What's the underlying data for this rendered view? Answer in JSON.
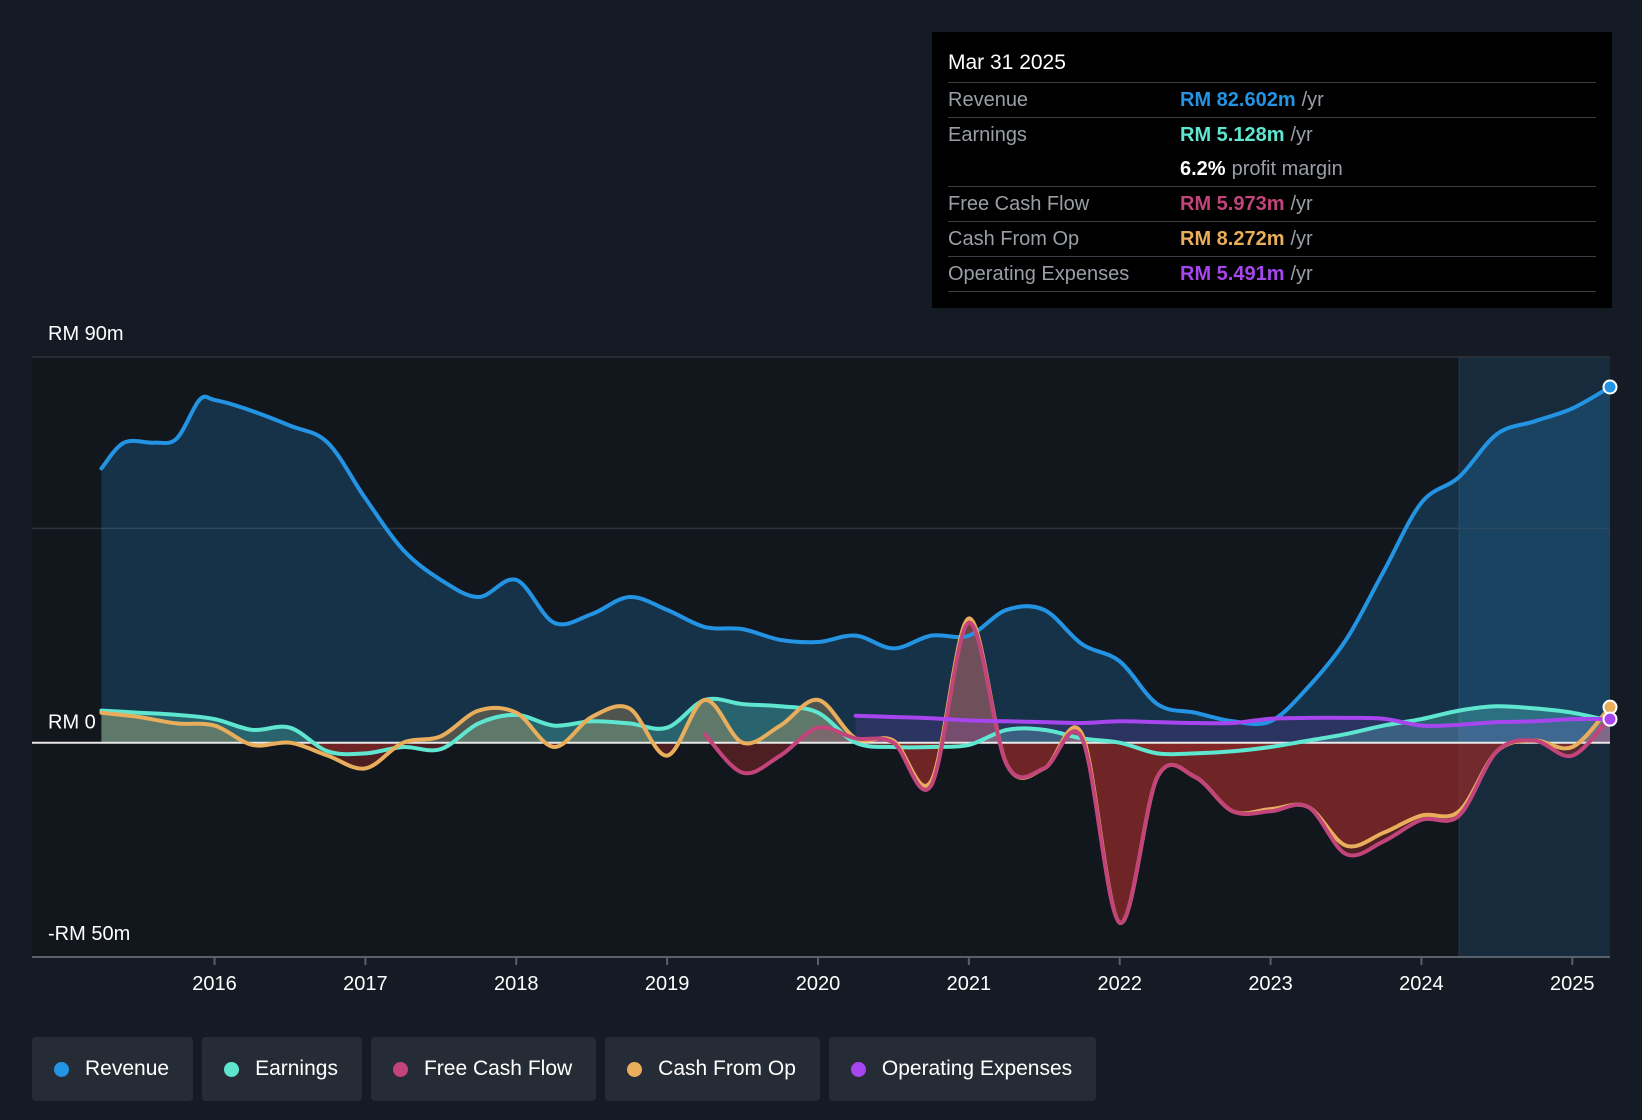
{
  "colors": {
    "revenue": "#2394e3",
    "earnings": "#5ee6d0",
    "fcf": "#c2447a",
    "cfo": "#e9ae5c",
    "opex": "#a746ee",
    "background": "#151b24",
    "forecast_shade": "#182b3d"
  },
  "tooltip": {
    "date": "Mar 31 2025",
    "rows": [
      {
        "name": "Revenue",
        "value": "RM 82.602m",
        "unit": "/yr",
        "color": "#2394e3"
      },
      {
        "name": "Earnings",
        "value": "RM 5.128m",
        "unit": "/yr",
        "color": "#5ee6d0"
      },
      {
        "name": "",
        "value": "6.2%",
        "unit": "profit margin",
        "color": "#ffffff"
      },
      {
        "name": "Free Cash Flow",
        "value": "RM 5.973m",
        "unit": "/yr",
        "color": "#c2447a"
      },
      {
        "name": "Cash From Op",
        "value": "RM 8.272m",
        "unit": "/yr",
        "color": "#e9ae5c"
      },
      {
        "name": "Operating Expenses",
        "value": "RM 5.491m",
        "unit": "/yr",
        "color": "#a746ee"
      }
    ]
  },
  "legend": [
    {
      "label": "Revenue",
      "color": "#2394e3"
    },
    {
      "label": "Earnings",
      "color": "#5ee6d0"
    },
    {
      "label": "Free Cash Flow",
      "color": "#c2447a"
    },
    {
      "label": "Cash From Op",
      "color": "#e9ae5c"
    },
    {
      "label": "Operating Expenses",
      "color": "#a746ee"
    }
  ],
  "chart_data": {
    "type": "line",
    "title": "",
    "xlabel": "",
    "ylabel": "",
    "ylim": [
      -50,
      90
    ],
    "y_tick_labels": [
      "RM 90m",
      "RM 0",
      "-RM 50m"
    ],
    "x_tick_labels": [
      "2016",
      "2017",
      "2018",
      "2019",
      "2020",
      "2021",
      "2022",
      "2023",
      "2024",
      "2025"
    ],
    "x_tick_values": [
      2016,
      2017,
      2018,
      2019,
      2020,
      2021,
      2022,
      2023,
      2024,
      2025
    ],
    "xlim": [
      2014.79,
      2025.25
    ],
    "forecast_start": 2024.25,
    "series": [
      {
        "name": "Revenue",
        "key": "revenue",
        "x": [
          2015.25,
          2015.4,
          2015.6,
          2015.75,
          2015.9,
          2016.0,
          2016.2,
          2016.5,
          2016.75,
          2017.0,
          2017.25,
          2017.5,
          2017.75,
          2018.0,
          2018.25,
          2018.5,
          2018.75,
          2019.0,
          2019.25,
          2019.5,
          2019.75,
          2020.0,
          2020.25,
          2020.5,
          2020.75,
          2021.0,
          2021.25,
          2021.5,
          2021.75,
          2022.0,
          2022.25,
          2022.5,
          2022.75,
          2023.0,
          2023.25,
          2023.5,
          2023.75,
          2024.0,
          2024.25,
          2024.5,
          2024.75,
          2025.0,
          2025.25
        ],
        "values": [
          64,
          70,
          70,
          71,
          80,
          80,
          78,
          74,
          70,
          57,
          45,
          38,
          34,
          38,
          28,
          30,
          34,
          31,
          27,
          26.5,
          24,
          23.5,
          25,
          22,
          25,
          25,
          31,
          31,
          23,
          19,
          9,
          7,
          5,
          5,
          13,
          24,
          40,
          56,
          62,
          72,
          75,
          78,
          83
        ]
      },
      {
        "name": "Earnings",
        "key": "earnings",
        "x": [
          2015.25,
          2015.5,
          2015.75,
          2016.0,
          2016.25,
          2016.5,
          2016.75,
          2017.0,
          2017.25,
          2017.5,
          2017.75,
          2018.0,
          2018.25,
          2018.5,
          2018.75,
          2019.0,
          2019.25,
          2019.5,
          2019.75,
          2020.0,
          2020.25,
          2020.5,
          2020.75,
          2021.0,
          2021.25,
          2021.5,
          2021.75,
          2022.0,
          2022.25,
          2022.5,
          2022.75,
          2023.0,
          2023.25,
          2023.5,
          2023.75,
          2024.0,
          2024.25,
          2024.5,
          2024.75,
          2025.0,
          2025.25
        ],
        "values": [
          7.5,
          7,
          6.5,
          5.5,
          3,
          3.5,
          -2,
          -2.5,
          -1,
          -1.5,
          4.5,
          6.5,
          4,
          5,
          4.5,
          3.5,
          10,
          9,
          8.5,
          7,
          0,
          -1,
          -1,
          -0.5,
          3,
          3,
          1,
          0,
          -2.5,
          -2.5,
          -2,
          -1,
          0.5,
          2,
          4,
          5.5,
          7.5,
          8.5,
          8,
          7,
          5.1
        ]
      },
      {
        "name": "Free Cash Flow",
        "key": "fcf",
        "x": [
          2019.25,
          2019.5,
          2019.75,
          2020.0,
          2020.25,
          2020.5,
          2020.75,
          2021.0,
          2021.25,
          2021.5,
          2021.75,
          2022.0,
          2022.25,
          2022.5,
          2022.75,
          2023.0,
          2023.25,
          2023.5,
          2023.75,
          2024.0,
          2024.25,
          2024.5,
          2024.75,
          2025.0,
          2025.25
        ],
        "values": [
          2,
          -7,
          -3,
          3.5,
          1,
          0,
          -10,
          28,
          -5,
          -6,
          1,
          -42,
          -8,
          -8,
          -16,
          -16,
          -15,
          -26,
          -23,
          -18,
          -17,
          -2,
          0.5,
          -3,
          6
        ]
      },
      {
        "name": "Cash From Op",
        "key": "cfo",
        "x": [
          2015.25,
          2015.5,
          2015.75,
          2016.0,
          2016.25,
          2016.5,
          2016.75,
          2017.0,
          2017.25,
          2017.5,
          2017.75,
          2018.0,
          2018.25,
          2018.5,
          2018.75,
          2019.0,
          2019.25,
          2019.5,
          2019.75,
          2020.0,
          2020.25,
          2020.5,
          2020.75,
          2021.0,
          2021.25,
          2021.5,
          2021.75,
          2022.0,
          2022.25,
          2022.5,
          2022.75,
          2023.0,
          2023.25,
          2023.5,
          2023.75,
          2024.0,
          2024.25,
          2024.5,
          2024.75,
          2025.0,
          2025.25
        ],
        "values": [
          7,
          6,
          4.5,
          4,
          -0.5,
          0,
          -3,
          -6,
          0,
          1.5,
          7.5,
          7,
          -1,
          6,
          8,
          -3,
          10,
          0,
          4,
          10,
          1,
          0.5,
          -9,
          29,
          -5,
          -6,
          2,
          -42,
          -8,
          -8,
          -16,
          -15.5,
          -15,
          -24,
          -21,
          -17,
          -16,
          -2,
          0.5,
          -1,
          8.3
        ]
      },
      {
        "name": "Operating Expenses",
        "key": "opex",
        "x": [
          2020.25,
          2020.5,
          2020.75,
          2021.0,
          2021.25,
          2021.5,
          2021.75,
          2022.0,
          2022.25,
          2022.5,
          2022.75,
          2023.0,
          2023.25,
          2023.5,
          2023.75,
          2024.0,
          2024.25,
          2024.5,
          2024.75,
          2025.0,
          2025.25
        ],
        "values": [
          6.3,
          6,
          5.7,
          5.2,
          5,
          4.8,
          4.6,
          5,
          4.8,
          4.6,
          4.6,
          5.6,
          5.8,
          5.8,
          5.6,
          4,
          4.2,
          4.8,
          5,
          5.5,
          5.5
        ]
      }
    ]
  }
}
